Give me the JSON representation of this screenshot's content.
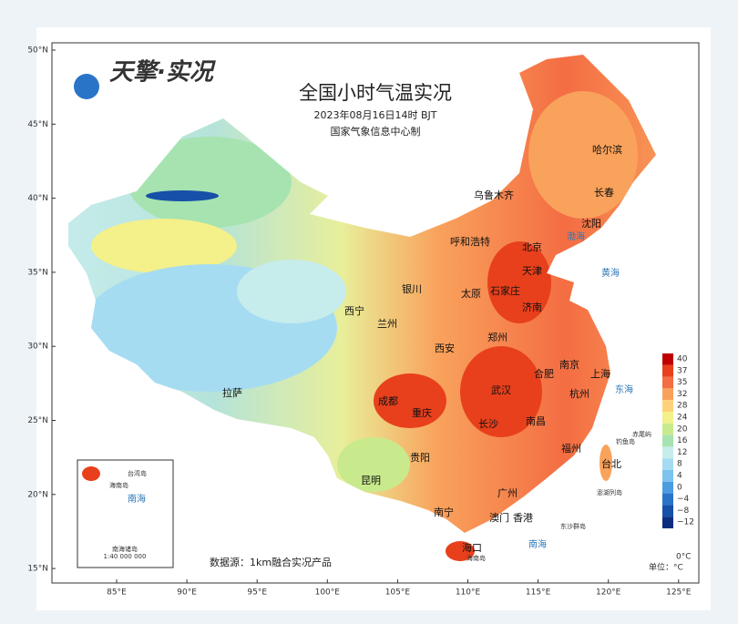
{
  "header": {
    "logo": "天擎·实况",
    "title": "全国小时气温实况",
    "time": "2023年08月16日14时  BJT",
    "producer": "国家气象信息中心制"
  },
  "axes": {
    "lat": [
      "50°N",
      "45°N",
      "40°N",
      "35°N",
      "30°N",
      "25°N",
      "20°N",
      "15°N"
    ],
    "lon": [
      "85°E",
      "90°E",
      "95°E",
      "100°E",
      "105°E",
      "110°E",
      "115°E",
      "120°E",
      "125°E"
    ]
  },
  "cities": [
    "乌鲁木齐",
    "哈尔滨",
    "长春",
    "沈阳",
    "呼和浩特",
    "北京",
    "天津",
    "石家庄",
    "太原",
    "银川",
    "西宁",
    "兰州",
    "济南",
    "郑州",
    "西安",
    "南京",
    "合肥",
    "上海",
    "杭州",
    "武汉",
    "成都",
    "重庆",
    "长沙",
    "南昌",
    "福州",
    "贵阳",
    "台北",
    "昆明",
    "南宁",
    "广州",
    "澳门",
    "香港",
    "海口",
    "拉萨"
  ],
  "seas": [
    "渤海",
    "黄海",
    "东海",
    "南海"
  ],
  "islands": [
    "赤尾屿",
    "钓鱼岛",
    "澎湖列岛",
    "东沙群岛",
    "海南岛"
  ],
  "inset": {
    "taiwan": "台湾岛",
    "hainan": "海南岛",
    "sea": "南海",
    "islands": "南海诸岛",
    "scale": "1:40 000 000"
  },
  "legend": {
    "zero": "0°C",
    "unit": "单位：°C",
    "items": [
      {
        "label": "40",
        "color": "#c00000"
      },
      {
        "label": "37",
        "color": "#e8401c"
      },
      {
        "label": "35",
        "color": "#f46d43"
      },
      {
        "label": "32",
        "color": "#f9a25c"
      },
      {
        "label": "28",
        "color": "#fdd27a"
      },
      {
        "label": "24",
        "color": "#f4f08a"
      },
      {
        "label": "20",
        "color": "#c9ea8c"
      },
      {
        "label": "16",
        "color": "#a6e3b0"
      },
      {
        "label": "12",
        "color": "#c6ecec"
      },
      {
        "label": "8",
        "color": "#a5dcf2"
      },
      {
        "label": "4",
        "color": "#7cc3ee"
      },
      {
        "label": "0",
        "color": "#4a9de0"
      },
      {
        "label": "−4",
        "color": "#2a74c8"
      },
      {
        "label": "−8",
        "color": "#1650a8"
      },
      {
        "label": "−12",
        "color": "#0c2e80"
      }
    ]
  },
  "source": "数据源：1km融合实况产品"
}
